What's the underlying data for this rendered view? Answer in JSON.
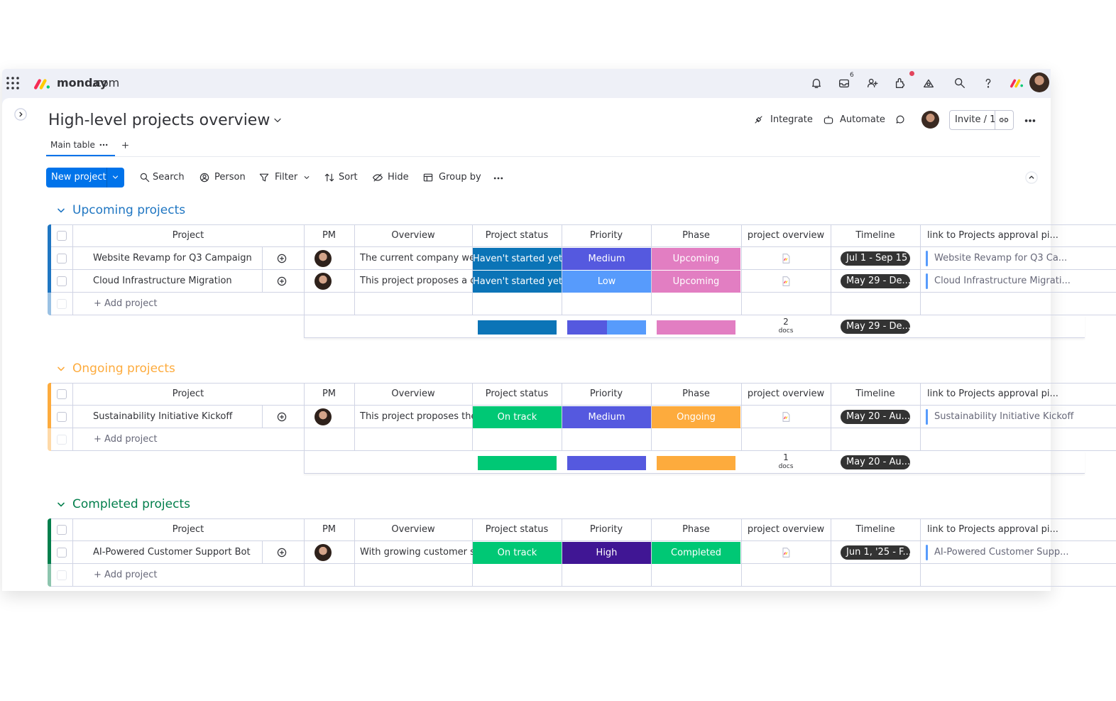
{
  "topbar": {
    "brand": "monday",
    "brand_suffix": ".com",
    "inbox_badge": 6
  },
  "header": {
    "title": "High-level projects overview",
    "tab": "Main table",
    "integrate": "Integrate",
    "automate": "Automate",
    "invite": "Invite / 1"
  },
  "toolbar": {
    "new_item": "New project",
    "search": "Search",
    "person": "Person",
    "filter": "Filter",
    "sort": "Sort",
    "hide": "Hide",
    "group_by": "Group by"
  },
  "columns": [
    "Project",
    "PM",
    "Overview",
    "Project status",
    "Priority",
    "Phase",
    "project overview",
    "Timeline",
    "link to Projects approval pi..."
  ],
  "groups": [
    {
      "name": "Upcoming projects",
      "color": "#1f76c2",
      "add_label": "+ Add project",
      "rows": [
        {
          "project": "Website Revamp for Q3 Campaign",
          "overview": "The current company we...",
          "status": {
            "text": "Haven't started yet",
            "color": "#0b74b7"
          },
          "priority": {
            "text": "Medium",
            "color": "#5559df"
          },
          "phase": {
            "text": "Upcoming",
            "color": "#e27ec2"
          },
          "timeline": "Jul 1 - Sep 15",
          "link": "Website Revamp for Q3 Ca..."
        },
        {
          "project": "Cloud Infrastructure Migration",
          "overview": "This project proposes a c...",
          "status": {
            "text": "Haven't started yet",
            "color": "#0b74b7"
          },
          "priority": {
            "text": "Low",
            "color": "#579bfc"
          },
          "phase": {
            "text": "Upcoming",
            "color": "#e27ec2"
          },
          "timeline": "May 29 - De...",
          "link": "Cloud Infrastructure Migrati..."
        }
      ],
      "summary": {
        "docs_count": 2,
        "docs_label": "docs",
        "timeline": "May 29 - De..."
      }
    },
    {
      "name": "Ongoing projects",
      "color": "#fdab3d",
      "add_label": "+ Add project",
      "rows": [
        {
          "project": "Sustainability Initiative Kickoff",
          "overview": "This project proposes the...",
          "status": {
            "text": "On track",
            "color": "#00c875"
          },
          "priority": {
            "text": "Medium",
            "color": "#5559df"
          },
          "phase": {
            "text": "Ongoing",
            "color": "#fdab3d"
          },
          "timeline": "May 20 - Au...",
          "link": "Sustainability Initiative Kickoff"
        }
      ],
      "summary": {
        "docs_count": 1,
        "docs_label": "docs",
        "timeline": "May 20 - Au..."
      }
    },
    {
      "name": "Completed projects",
      "color": "#037f4c",
      "add_label": "+ Add project",
      "rows": [
        {
          "project": "AI-Powered Customer Support Bot",
          "overview": "With growing customer s...",
          "status": {
            "text": "On track",
            "color": "#00c875"
          },
          "priority": {
            "text": "High",
            "color": "#401694"
          },
          "phase": {
            "text": "Completed",
            "color": "#00c875"
          },
          "timeline": "Jun 1, '25 - F...",
          "link": "AI-Powered Customer Supp..."
        }
      ]
    }
  ]
}
